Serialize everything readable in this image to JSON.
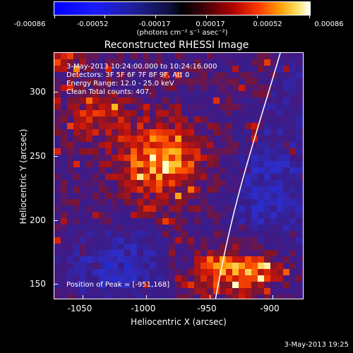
{
  "colorbar": {
    "tick_labels": [
      "-0.00086",
      "-0.00052",
      "-0.00017",
      "0.00017",
      "0.00052",
      "0.00086"
    ],
    "unit_label": "(photons cm⁻² s⁻¹ asec⁻²)"
  },
  "title": "Reconstructed RHESSI Image",
  "info": {
    "line1": "3-May-2013 10:24:00.000 to 10:24:16.000",
    "line2": "Detectors: 3F 5F 6F 7F 8F 9F, Att 0",
    "line3": "Energy Range: 12.0 - 25.0 keV",
    "line4": "Clean     Total counts: 407."
  },
  "peak_text": "Position of Peak = [-951,168]",
  "axes": {
    "x_title": "Heliocentric X (arcsec)",
    "y_title": "Heliocentric Y (arcsec)",
    "x_ticks": [
      "-1050",
      "-1000",
      "-950",
      "-900"
    ],
    "y_ticks": [
      "300",
      "250",
      "200",
      "150"
    ]
  },
  "timestamp": "3-May-2013 19:25",
  "colors": {
    "limb": "#ffffff",
    "background": "#000000"
  }
}
